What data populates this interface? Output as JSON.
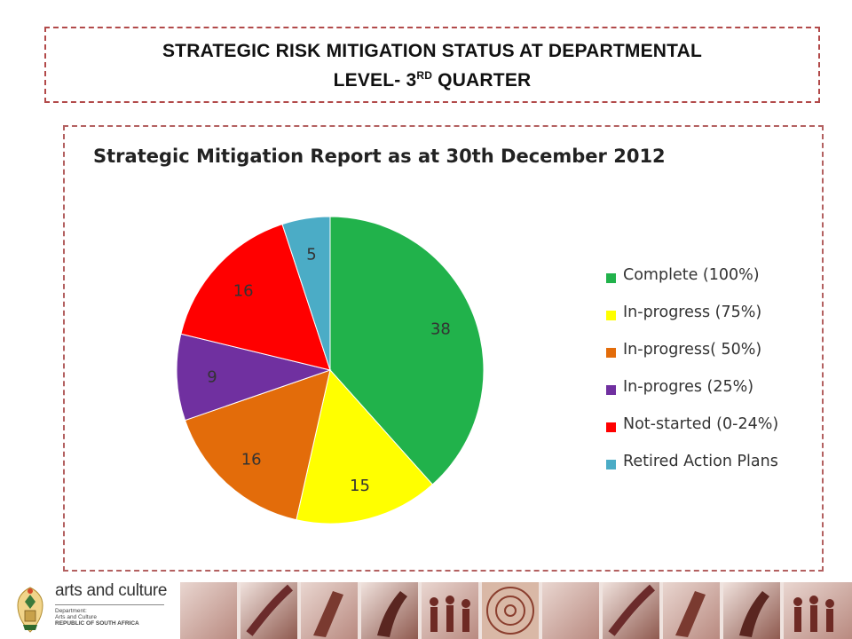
{
  "slide": {
    "title_line1": "STRATEGIC RISK MITIGATION STATUS AT DEPARTMENTAL",
    "title_line2_pre": "LEVEL- 3",
    "title_line2_sup": "RD",
    "title_line2_post": " QUARTER"
  },
  "footer": {
    "logo_name": "arts and culture",
    "dept_line1": "Department:",
    "dept_line2": "Arts and Culture",
    "dept_line3": "REPUBLIC OF SOUTH AFRICA",
    "logo_icon": "coat-of-arms-icon"
  },
  "chart_data": {
    "type": "pie",
    "title": "Strategic Mitigation Report as at  30th December 2012",
    "legend_position": "right",
    "slices": [
      {
        "label": "Complete (100%)",
        "value": 38,
        "color": "#21b24b"
      },
      {
        "label": "In-progress (75%)",
        "value": 15,
        "color": "#ffff00"
      },
      {
        "label": "In-progress( 50%)",
        "value": 16,
        "color": "#e36c0a"
      },
      {
        "label": "In-progres (25%)",
        "value": 9,
        "color": "#7030a0"
      },
      {
        "label": "Not-started (0-24%)",
        "value": 16,
        "color": "#ff0000"
      },
      {
        "label": "Retired Action Plans",
        "value": 5,
        "color": "#4bacc6"
      }
    ]
  }
}
